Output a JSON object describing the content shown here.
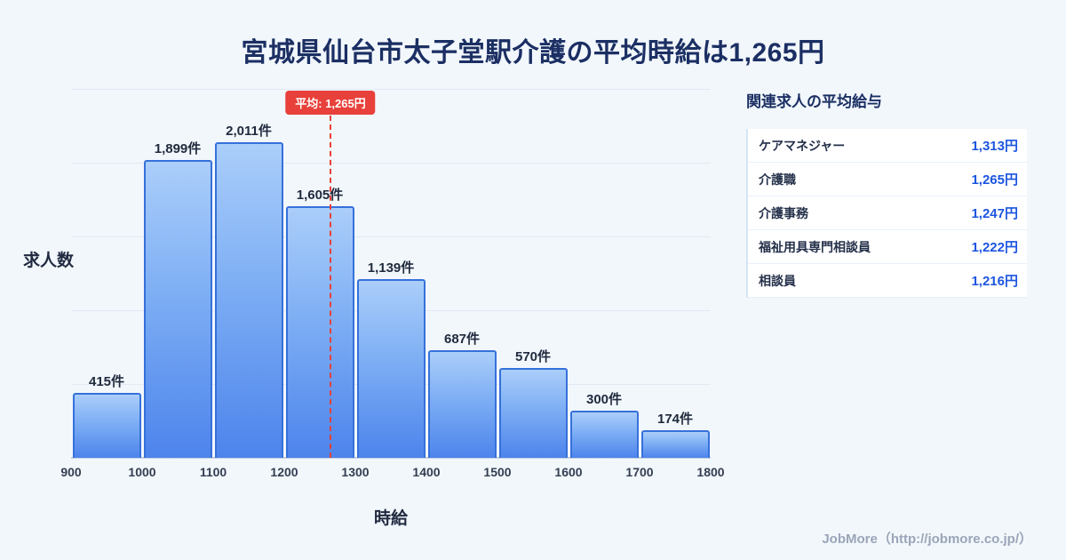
{
  "page": {
    "title": "宮城県仙台市太子堂駅介護の平均時給は1,265円",
    "footer": "JobMore（http://jobmore.co.jp/）"
  },
  "chart_data": {
    "type": "bar",
    "title": "宮城県仙台市太子堂駅介護の平均時給は1,265円",
    "xlabel": "時給",
    "ylabel": "求人数",
    "x_ticks": [
      900,
      1000,
      1100,
      1200,
      1300,
      1400,
      1500,
      1600,
      1700,
      1800
    ],
    "categories": [
      "900-1000",
      "1000-1100",
      "1100-1200",
      "1200-1300",
      "1300-1400",
      "1400-1500",
      "1500-1600",
      "1600-1700",
      "1700-1800"
    ],
    "values": [
      415,
      1899,
      2011,
      1605,
      1139,
      687,
      570,
      300,
      174
    ],
    "value_labels": [
      "415件",
      "1,899件",
      "2,011件",
      "1,605件",
      "1,139件",
      "687件",
      "570件",
      "300件",
      "174件"
    ],
    "average": 1265,
    "average_label": "平均: 1,265円",
    "xlim": [
      900,
      1800
    ],
    "ylim": [
      0,
      2350
    ],
    "grid": true,
    "legend": "none"
  },
  "side_panel": {
    "title": "関連求人の平均給与",
    "rows": [
      {
        "label": "ケアマネジャー",
        "value": "1,313円"
      },
      {
        "label": "介護職",
        "value": "1,265円"
      },
      {
        "label": "介護事務",
        "value": "1,247円"
      },
      {
        "label": "福祉用具専門相談員",
        "value": "1,222円"
      },
      {
        "label": "相談員",
        "value": "1,216円"
      }
    ]
  },
  "colors": {
    "background": "#f2f7fc",
    "title_text": "#1b2f63",
    "bar_fill_top": "#abcefa",
    "bar_fill_bottom": "#4d84ec",
    "bar_border": "#3671da",
    "average_red": "#e8403a",
    "value_blue": "#1d55e0",
    "footer_gray": "#9aa5b8"
  }
}
